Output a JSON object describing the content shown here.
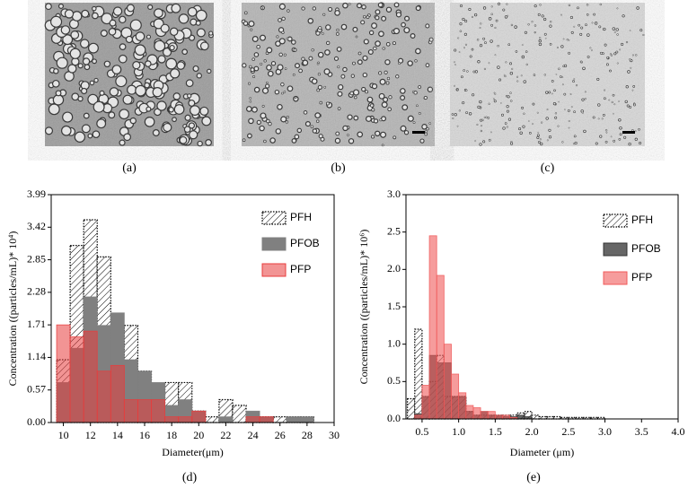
{
  "panel_labels": [
    "(a)",
    "(b)",
    "(c)"
  ],
  "chart_data": [
    {
      "type": "bar",
      "panel_label": "(d)",
      "x_label": "Diameter(μm)",
      "y_label": "Concentration ((particles/mL)* 10⁴)",
      "x": [
        10,
        11,
        12,
        13,
        14,
        15,
        16,
        17,
        18,
        19,
        20,
        21,
        22,
        23,
        24,
        25,
        26,
        27,
        28
      ],
      "xlim": [
        9.1,
        30
      ],
      "xticks": [
        10,
        12,
        14,
        16,
        18,
        20,
        22,
        24,
        26,
        28,
        30
      ],
      "ylim": [
        0,
        3.99
      ],
      "yticks": [
        {
          "value": 0,
          "label": "0.00"
        },
        0.57,
        1.14,
        1.71,
        2.28,
        2.85,
        3.42,
        3.99
      ],
      "legend": "upper right",
      "series": [
        {
          "name": "PFH",
          "color": "#000000",
          "hatch": true,
          "values": [
            1.1,
            3.1,
            3.55,
            2.9,
            1.4,
            1.7,
            0.9,
            0.55,
            0.7,
            0.7,
            0.2,
            0.1,
            0.4,
            0.3,
            0.1,
            0.1,
            0.1,
            0.1,
            0.1
          ]
        },
        {
          "name": "PFOB",
          "color": "#808080",
          "opacity": 1,
          "values": [
            0.7,
            1.3,
            2.2,
            1.7,
            1.92,
            1.1,
            0.9,
            0.7,
            0.3,
            0.4,
            0.2,
            0,
            0.1,
            0,
            0.2,
            0.1,
            0,
            0.1,
            0.1
          ]
        },
        {
          "name": "PFP",
          "color": "#e83c3c",
          "opacity": 0.55,
          "values": [
            1.71,
            1.5,
            1.6,
            0.9,
            1.0,
            0.4,
            0.4,
            0.4,
            0.1,
            0.1,
            0.2,
            0,
            0,
            0,
            0.1,
            0.1,
            0,
            0,
            0
          ]
        }
      ]
    },
    {
      "type": "bar",
      "panel_label": "(e)",
      "x_label": "Diameter (μm)",
      "y_label": "Concentration ((particles/mL)* 10⁶)",
      "x": [
        0.35,
        0.45,
        0.55,
        0.65,
        0.75,
        0.85,
        0.95,
        1.05,
        1.15,
        1.25,
        1.35,
        1.45,
        1.55,
        1.65,
        1.75,
        1.85,
        1.95,
        2.05,
        2.15,
        2.25,
        2.35,
        2.45,
        2.55,
        2.65,
        2.75,
        2.85,
        2.95
      ],
      "xlim": [
        0.28,
        4.0
      ],
      "xticks": [
        0.5,
        {
          "value": 1,
          "label": "1.0"
        },
        1.5,
        {
          "value": 2,
          "label": "2.0"
        },
        2.5,
        {
          "value": 3,
          "label": "3.0"
        },
        3.5,
        {
          "value": 4,
          "label": "4.0"
        }
      ],
      "ylim": [
        0,
        3.0
      ],
      "yticks": [
        {
          "value": 0,
          "label": "0.0"
        },
        0.5,
        {
          "value": 1,
          "label": "1.0"
        },
        1.5,
        {
          "value": 2,
          "label": "2.0"
        },
        2.5,
        {
          "value": 3,
          "label": "3.0"
        }
      ],
      "legend": "upper right",
      "series": [
        {
          "name": "PFH",
          "color": "#000000",
          "hatch": true,
          "values": [
            0.27,
            1.2,
            0.3,
            0.5,
            0.85,
            0.3,
            0.3,
            0.3,
            0.1,
            0.05,
            0.05,
            0.05,
            0.05,
            0.05,
            0.05,
            0.08,
            0.1,
            0.05,
            0.03,
            0.03,
            0.03,
            0.02,
            0.02,
            0.02,
            0.02,
            0.02,
            0.02
          ]
        },
        {
          "name": "PFOB",
          "color": "#333333",
          "opacity": 0.75,
          "values": [
            0,
            0.07,
            0.3,
            0.85,
            0.75,
            0.75,
            0.3,
            0.3,
            0.1,
            0.05,
            0.1,
            0.05,
            0.05,
            0.03,
            0.03,
            0.05,
            0.03,
            0,
            0,
            0,
            0,
            0,
            0,
            0,
            0,
            0,
            0
          ]
        },
        {
          "name": "PFP",
          "color": "#f05a5a",
          "opacity": 0.6,
          "values": [
            0,
            0.05,
            0.45,
            2.45,
            1.92,
            1.0,
            0.6,
            0.35,
            0.18,
            0.15,
            0.1,
            0.1,
            0.05,
            0.05,
            0.02,
            0,
            0,
            0,
            0,
            0,
            0,
            0,
            0,
            0,
            0,
            0,
            0
          ]
        }
      ]
    }
  ]
}
